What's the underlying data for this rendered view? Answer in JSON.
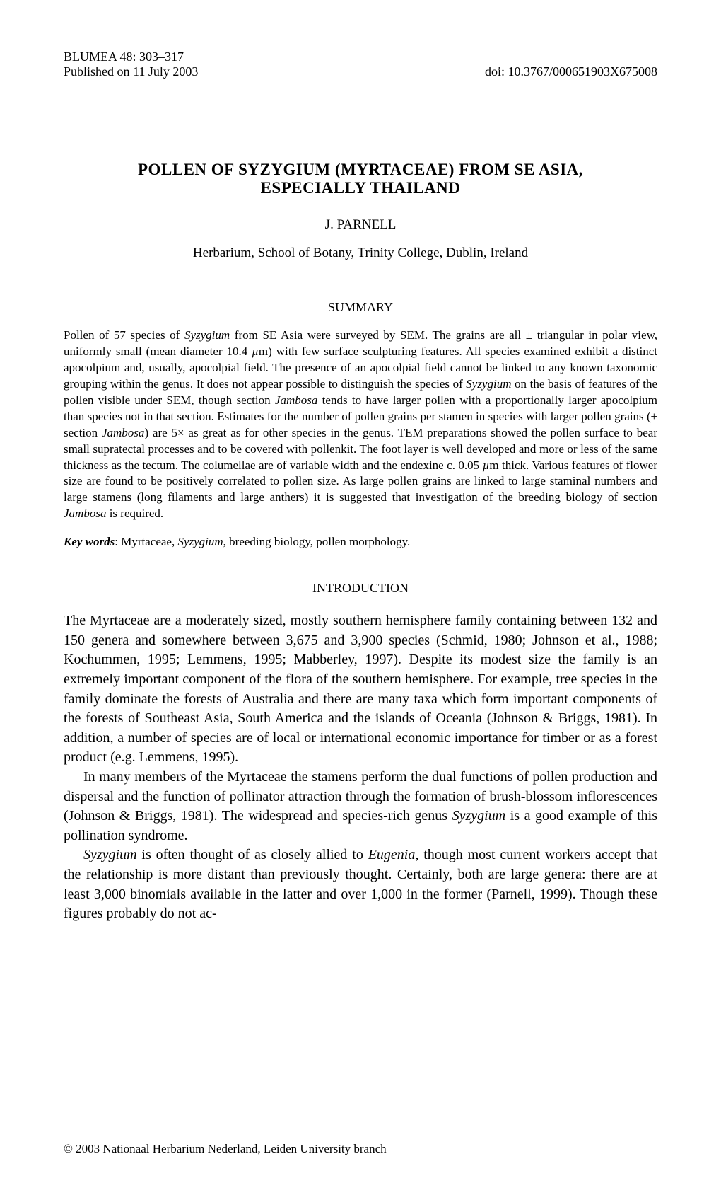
{
  "header": {
    "journal_ref": "BLUMEA 48: 303–317",
    "published": "Published on 11 July 2003",
    "doi": "doi: 10.3767/000651903X675008"
  },
  "title": {
    "line1": "POLLEN OF SYZYGIUM (MYRTACEAE) FROM SE ASIA,",
    "line2": "ESPECIALLY THAILAND"
  },
  "author": "J. PARNELL",
  "affiliation": "Herbarium, School of Botany, Trinity College, Dublin, Ireland",
  "summary": {
    "heading": "SUMMARY",
    "p1a": "Pollen of 57 species of ",
    "p1b": "Syzygium",
    "p1c": " from SE Asia were surveyed by SEM. The grains are all ± triangular in polar view, uniformly small (mean diameter 10.4 ",
    "p1d": "µ",
    "p1e": "m) with few surface sculpturing features. All species examined exhibit a distinct apocolpium and, usually, apocolpial field. The presence of an apocolpial field cannot be linked to any known taxonomic grouping within the genus. It does not appear possible to distinguish the species of ",
    "p1f": "Syzygium",
    "p1g": " on the basis of features of the pollen visible under SEM, though section ",
    "p1h": "Jambosa",
    "p1i": " tends to have larger pollen with a proportionally larger apocolpium than species not in that section. Estimates for the number of pollen grains per stamen in species with larger pollen grains (± section ",
    "p1j": "Jambosa",
    "p1k": ") are 5× as great as for other species in the genus. TEM preparations showed the pollen surface to bear small supratectal processes and to be covered with pollenkit. The foot layer is well developed and more or less of the same thickness as the tectum. The columellae are of variable width and the endexine c. 0.05 ",
    "p1l": "µ",
    "p1m": "m thick. Various features of flower size are found to be positively correlated to pollen size. As large pollen grains are linked to large staminal numbers and large stamens (long filaments and large anthers) it is suggested that investigation of the breeding biology of section ",
    "p1n": "Jambosa",
    "p1o": " is required."
  },
  "keywords": {
    "label": "Key words",
    "a": ": Myrtaceae, ",
    "b": "Syzygium",
    "c": ", breeding biology, pollen morphology."
  },
  "intro": {
    "heading": "INTRODUCTION",
    "p1": "The Myrtaceae are a moderately sized, mostly southern hemisphere family containing between 132 and 150 genera and somewhere between 3,675 and 3,900 species (Schmid, 1980; Johnson et al., 1988; Kochummen, 1995; Lemmens, 1995; Mabberley, 1997). Despite its modest size the family is an extremely important component of the flora of the southern hemisphere. For example, tree species in the family dominate the forests of Australia and there are many taxa which form important components of the forests of Southeast Asia, South America and the islands of Oceania (Johnson & Briggs, 1981). In addition, a number of species are of local or international economic importance for timber or as a forest product (e.g. Lemmens, 1995).",
    "p2a": "In many members of the Myrtaceae the stamens perform the dual functions of pollen production and dispersal and the function of pollinator attraction through the formation of brush-blossom inflorescences (Johnson & Briggs, 1981). The widespread and species-rich genus ",
    "p2b": "Syzygium",
    "p2c": " is a good example of this pollination syndrome.",
    "p3a": "Syzygium",
    "p3b": " is often thought of as closely allied to ",
    "p3c": "Eugenia",
    "p3d": ", though most current workers accept that the relationship is more distant than previously thought. Certainly, both are large genera: there are at least 3,000 binomials available in the latter and over 1,000 in the former (Parnell, 1999). Though these figures probably do not ac-"
  },
  "footer": "© 2003 Nationaal Herbarium Nederland, Leiden University branch"
}
